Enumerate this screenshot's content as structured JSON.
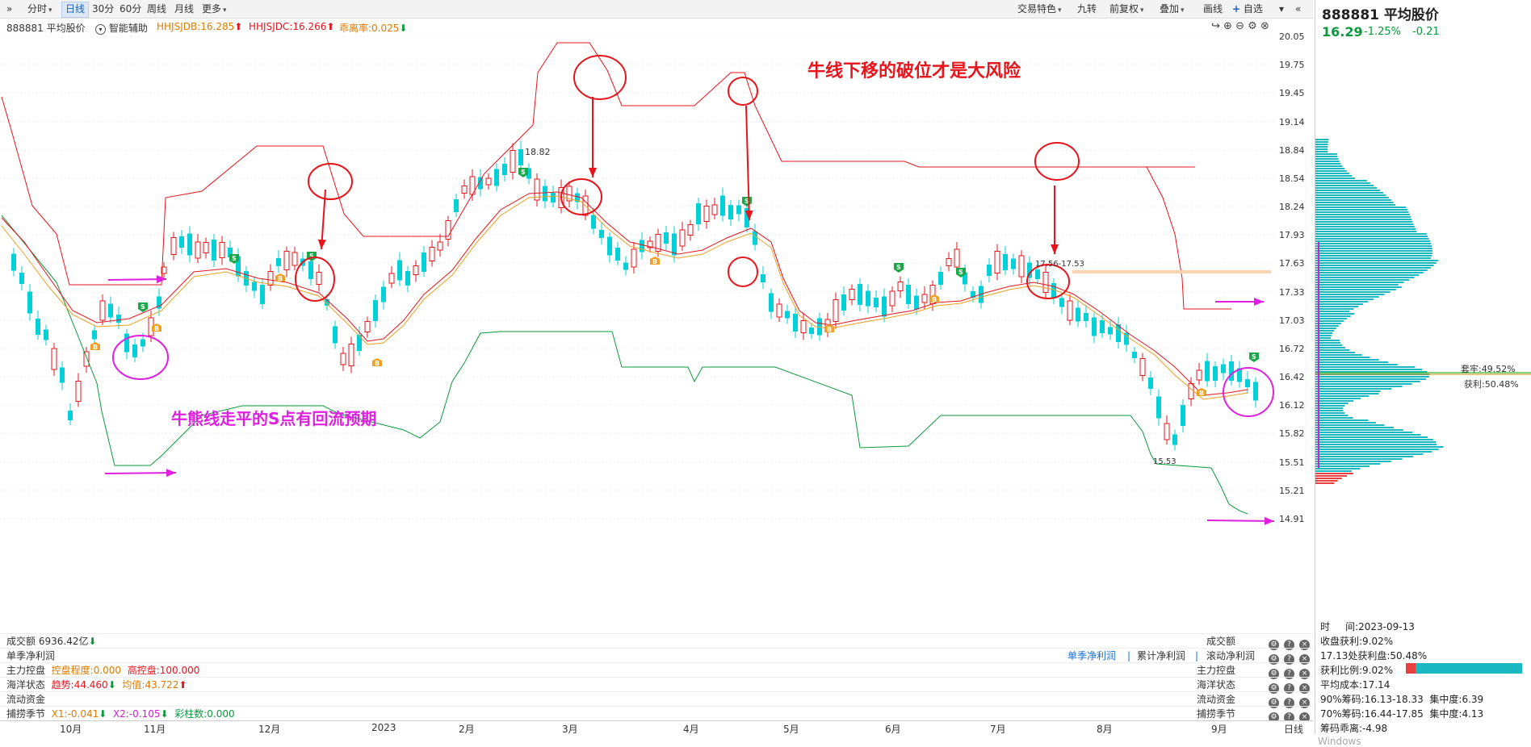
{
  "toolbar": {
    "left_items": [
      "分时",
      "日线",
      "30分",
      "60分",
      "周线",
      "月线",
      "更多"
    ],
    "active": "日线",
    "right_items": [
      "交易特色",
      "九转",
      "前复权",
      "叠加",
      "画线",
      "自选"
    ]
  },
  "stock": {
    "code": "888881",
    "name": "平均股价",
    "title": "888881 平均股价",
    "price": "16.29",
    "pct": "-1.25%",
    "chg": "-0.21"
  },
  "info": {
    "label": "888881 平均股价",
    "assist": "智能辅助",
    "db_label": "HHJSJDB:16.285",
    "dc_label": "HHJSJDC:16.266",
    "dev_label": "乖离率:0.025"
  },
  "price_axis": [
    "20.05",
    "19.75",
    "19.45",
    "19.14",
    "18.84",
    "18.54",
    "18.24",
    "17.93",
    "17.63",
    "17.33",
    "17.03",
    "16.72",
    "16.42",
    "16.12",
    "15.82",
    "15.51",
    "15.21",
    "14.91"
  ],
  "annotations": {
    "top_note": "牛线下移的破位才是大风险",
    "mid_note": "牛熊线走平的S点有回流预期",
    "high_label": "18.82",
    "low_label": "15.53",
    "range_label": "17.56-17.53"
  },
  "indicators": [
    {
      "name": "成交额",
      "value": "6936.42亿",
      "right": "成交额"
    },
    {
      "name": "单季净利润",
      "links": [
        "单季净利润",
        "累计净利润",
        "滚动净利润"
      ]
    },
    {
      "name": "主力控盘",
      "v1": "控盘程度:0.000",
      "v2": "高控盘:100.000",
      "right": "主力控盘"
    },
    {
      "name": "海洋状态",
      "v1": "趋势:44.460",
      "v2": "均值:43.722",
      "right": "海洋状态"
    },
    {
      "name": "流动资金",
      "right": "流动资金"
    },
    {
      "name": "捕捞季节",
      "v1": "X1:-0.041",
      "v2": "X2:-0.105",
      "v3": "彩柱数:0.000",
      "right": "捕捞季节"
    }
  ],
  "months": [
    "10月",
    "11月",
    "12月",
    "2023",
    "2月",
    "3月",
    "4月",
    "5月",
    "6月",
    "7月",
    "8月",
    "9月"
  ],
  "chip": {
    "trapped": "套牢:49.52%",
    "profit": "获利:50.48%",
    "date_label": "时",
    "date": "间:2023-09-13",
    "close_profit": "收盘获利:9.02%",
    "at_price": "17.13处获利盘:50.48%",
    "profit_ratio": "获利比例:9.02%",
    "avg_cost": "平均成本:17.14",
    "c90": "90%筹码:16.13-18.33",
    "c90_conc": "集中度:6.39",
    "c70": "70%筹码:16.44-17.85",
    "c70_conc": "集中度:4.13",
    "chip_dev": "筹码乖离:-4.98"
  },
  "bottom_right": "日线",
  "watermark": "激活 Windows",
  "colors": {
    "up": "#e8141c",
    "down": "#00d0d8",
    "bull": "#e8141c",
    "bear": "#0a9a3c",
    "ma_orange": "#f0a020",
    "magenta": "#e020e0"
  }
}
